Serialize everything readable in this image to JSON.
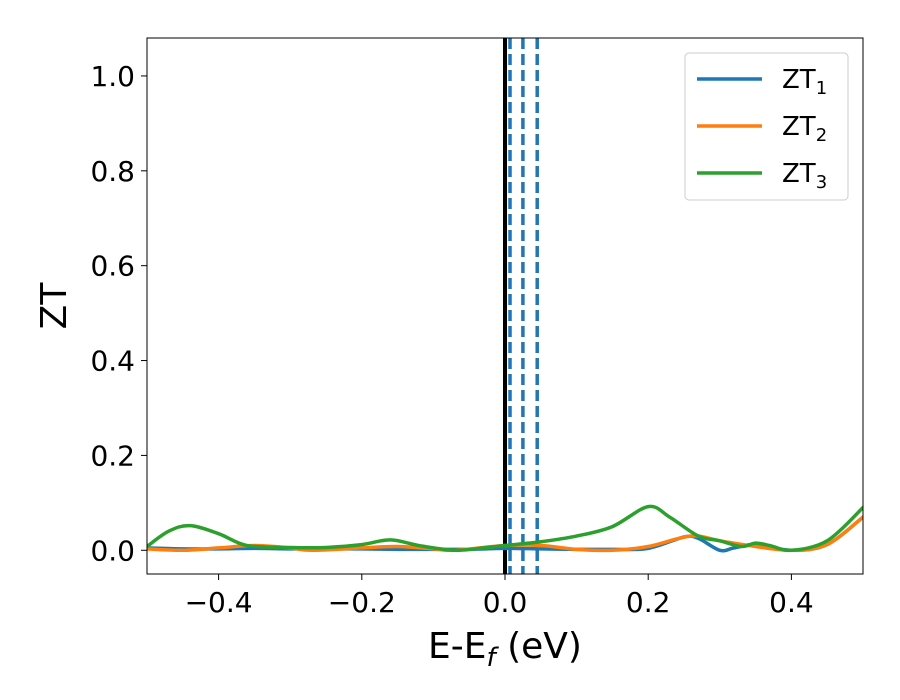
{
  "chart_data": {
    "type": "line",
    "title": "",
    "xlabel": {
      "main": "E-E",
      "sub": "f",
      "rest": " (eV)"
    },
    "ylabel": "ZT",
    "xlim": [
      -0.5,
      0.5
    ],
    "ylim": [
      -0.05,
      1.08
    ],
    "xticks": [
      -0.4,
      -0.2,
      0.0,
      0.2,
      0.4
    ],
    "xtick_labels": [
      "−0.4",
      "−0.2",
      "0.0",
      "0.2",
      "0.4"
    ],
    "yticks": [
      0.0,
      0.2,
      0.4,
      0.6,
      0.8,
      1.0
    ],
    "ytick_labels": [
      "0.0",
      "0.2",
      "0.4",
      "0.6",
      "0.8",
      "1.0"
    ],
    "grid": false,
    "legend_position": "top-right",
    "vertical_lines": [
      {
        "x": 0.0,
        "style": "solid",
        "color": "#000000"
      },
      {
        "x": 0.007,
        "style": "dashed",
        "color": "#1f77b4"
      },
      {
        "x": 0.025,
        "style": "dashed",
        "color": "#1f77b4"
      },
      {
        "x": 0.045,
        "style": "dashed",
        "color": "#1f77b4"
      }
    ],
    "series": [
      {
        "legend_main": "ZT",
        "legend_sub": "1",
        "color": "#1f77b4",
        "x": [
          -0.5,
          -0.45,
          -0.4,
          -0.35,
          -0.3,
          -0.25,
          -0.2,
          -0.15,
          -0.1,
          -0.05,
          0.0,
          0.05,
          0.1,
          0.15,
          0.2,
          0.25,
          0.27,
          0.3,
          0.32,
          0.35,
          0.4,
          0.45,
          0.5
        ],
        "y": [
          0.005,
          0.003,
          0.003,
          0.004,
          0.003,
          0.003,
          0.003,
          0.002,
          0.002,
          0.002,
          0.004,
          0.003,
          0.002,
          0.002,
          0.004,
          0.028,
          0.025,
          0.0,
          0.005,
          0.012,
          0.0,
          0.012,
          0.07
        ]
      },
      {
        "legend_main": "ZT",
        "legend_sub": "2",
        "color": "#ff7f0e",
        "x": [
          -0.5,
          -0.45,
          -0.4,
          -0.35,
          -0.3,
          -0.27,
          -0.2,
          -0.15,
          -0.1,
          -0.07,
          0.0,
          0.05,
          0.1,
          0.15,
          0.2,
          0.26,
          0.3,
          0.35,
          0.4,
          0.45,
          0.5
        ],
        "y": [
          0.003,
          0.0,
          0.005,
          0.01,
          0.005,
          0.0,
          0.005,
          0.008,
          0.003,
          0.0,
          0.01,
          0.01,
          0.002,
          0.0,
          0.008,
          0.03,
          0.02,
          0.008,
          0.0,
          0.012,
          0.07
        ]
      },
      {
        "legend_main": "ZT",
        "legend_sub": "3",
        "color": "#2ca02c",
        "x": [
          -0.5,
          -0.47,
          -0.44,
          -0.4,
          -0.36,
          -0.3,
          -0.25,
          -0.2,
          -0.16,
          -0.12,
          -0.07,
          -0.03,
          0.0,
          0.05,
          0.1,
          0.15,
          0.2,
          0.23,
          0.27,
          0.3,
          0.33,
          0.35,
          0.37,
          0.4,
          0.45,
          0.5
        ],
        "y": [
          0.008,
          0.04,
          0.052,
          0.035,
          0.01,
          0.006,
          0.006,
          0.012,
          0.022,
          0.01,
          0.0,
          0.005,
          0.01,
          0.018,
          0.03,
          0.05,
          0.092,
          0.07,
          0.03,
          0.02,
          0.008,
          0.015,
          0.01,
          0.0,
          0.02,
          0.09
        ]
      }
    ]
  }
}
